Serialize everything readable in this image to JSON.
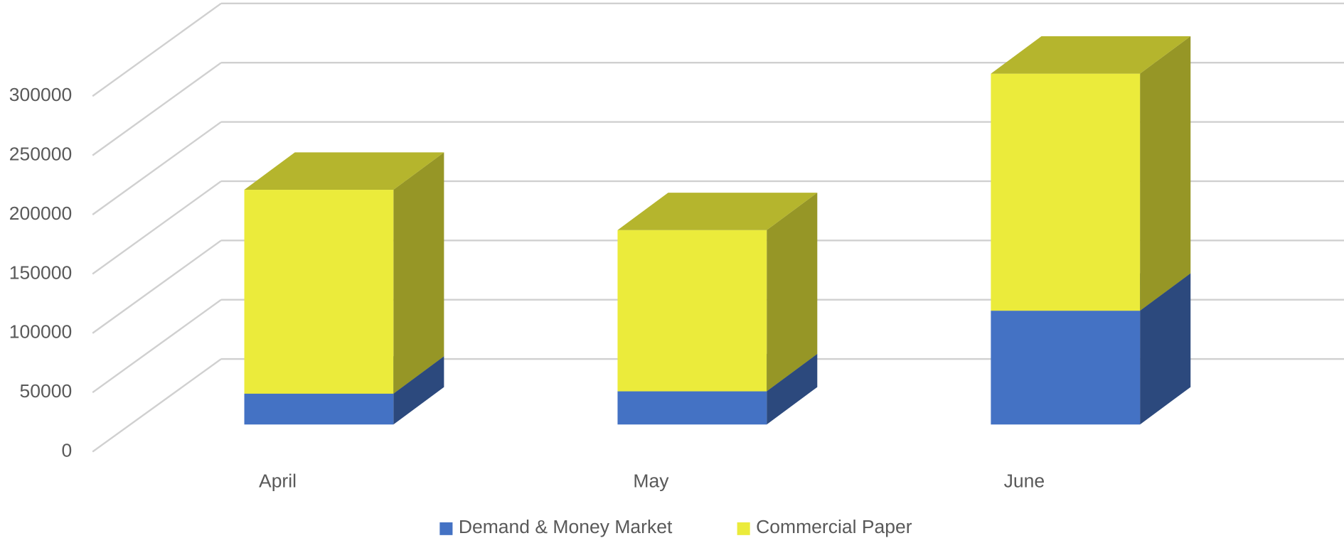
{
  "chart_data": {
    "type": "bar3d_stacked",
    "categories": [
      "April",
      "May",
      "June"
    ],
    "series": [
      {
        "name": "Demand & Money Market",
        "color": "#4472c4",
        "values": [
          26000,
          28000,
          96000
        ]
      },
      {
        "name": "Commercial Paper",
        "color": "#ebeb3b",
        "values": [
          172000,
          136000,
          200000
        ]
      }
    ],
    "ylim": [
      0,
      300000
    ],
    "yticks": [
      0,
      50000,
      100000,
      150000,
      200000,
      250000,
      300000
    ],
    "grid": true,
    "legend": "bottom"
  }
}
